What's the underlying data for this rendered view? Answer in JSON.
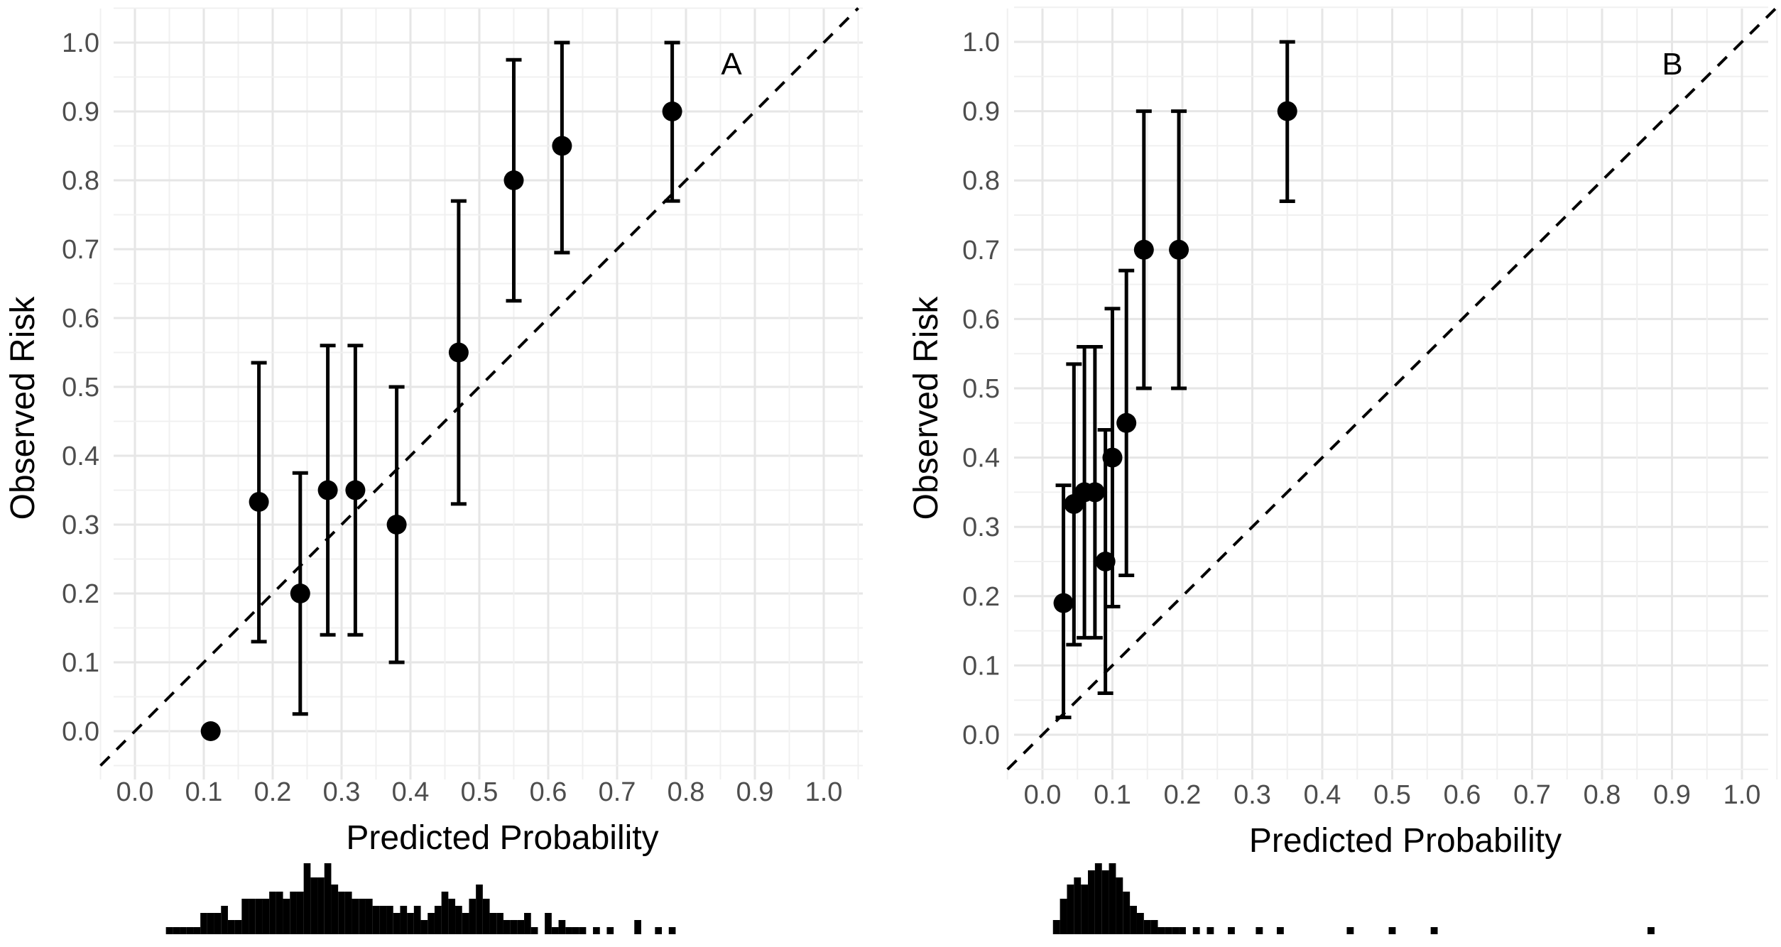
{
  "chart_data": [
    {
      "type": "scatter",
      "panel_label": "A",
      "xlabel": "Predicted Probability",
      "ylabel": "Observed Risk",
      "xlim": [
        0,
        1.0
      ],
      "ylim": [
        0,
        1.0
      ],
      "x_ticks": [
        "0.0",
        "0.1",
        "0.2",
        "0.3",
        "0.4",
        "0.5",
        "0.6",
        "0.7",
        "0.8",
        "0.9",
        "1.0"
      ],
      "y_ticks": [
        "0.0",
        "0.1",
        "0.2",
        "0.3",
        "0.4",
        "0.5",
        "0.6",
        "0.7",
        "0.8",
        "0.9",
        "1.0"
      ],
      "grid": true,
      "reference_line": "y = x (dashed)",
      "points": [
        {
          "x": 0.11,
          "y": 0.0,
          "lo": null,
          "hi": null
        },
        {
          "x": 0.18,
          "y": 0.333,
          "lo": 0.13,
          "hi": 0.535
        },
        {
          "x": 0.24,
          "y": 0.2,
          "lo": 0.025,
          "hi": 0.375
        },
        {
          "x": 0.28,
          "y": 0.35,
          "lo": 0.14,
          "hi": 0.56
        },
        {
          "x": 0.32,
          "y": 0.35,
          "lo": 0.14,
          "hi": 0.56
        },
        {
          "x": 0.38,
          "y": 0.3,
          "lo": 0.1,
          "hi": 0.5
        },
        {
          "x": 0.47,
          "y": 0.55,
          "lo": 0.33,
          "hi": 0.77
        },
        {
          "x": 0.55,
          "y": 0.8,
          "lo": 0.625,
          "hi": 0.975
        },
        {
          "x": 0.62,
          "y": 0.85,
          "lo": 0.695,
          "hi": 1.0
        },
        {
          "x": 0.78,
          "y": 0.9,
          "lo": 0.77,
          "hi": 1.0
        }
      ],
      "histogram": {
        "bins": [
          {
            "x": 0.05,
            "count": 1
          },
          {
            "x": 0.06,
            "count": 1
          },
          {
            "x": 0.07,
            "count": 1
          },
          {
            "x": 0.08,
            "count": 1
          },
          {
            "x": 0.09,
            "count": 1
          },
          {
            "x": 0.1,
            "count": 3
          },
          {
            "x": 0.11,
            "count": 3
          },
          {
            "x": 0.12,
            "count": 3
          },
          {
            "x": 0.13,
            "count": 4
          },
          {
            "x": 0.14,
            "count": 2
          },
          {
            "x": 0.15,
            "count": 2
          },
          {
            "x": 0.16,
            "count": 5
          },
          {
            "x": 0.17,
            "count": 5
          },
          {
            "x": 0.18,
            "count": 5
          },
          {
            "x": 0.19,
            "count": 5
          },
          {
            "x": 0.2,
            "count": 6
          },
          {
            "x": 0.21,
            "count": 6
          },
          {
            "x": 0.22,
            "count": 5
          },
          {
            "x": 0.23,
            "count": 6
          },
          {
            "x": 0.24,
            "count": 6
          },
          {
            "x": 0.25,
            "count": 10
          },
          {
            "x": 0.26,
            "count": 8
          },
          {
            "x": 0.27,
            "count": 8
          },
          {
            "x": 0.28,
            "count": 10
          },
          {
            "x": 0.29,
            "count": 7
          },
          {
            "x": 0.3,
            "count": 6
          },
          {
            "x": 0.31,
            "count": 6
          },
          {
            "x": 0.32,
            "count": 5
          },
          {
            "x": 0.33,
            "count": 5
          },
          {
            "x": 0.34,
            "count": 5
          },
          {
            "x": 0.35,
            "count": 4
          },
          {
            "x": 0.36,
            "count": 4
          },
          {
            "x": 0.37,
            "count": 4
          },
          {
            "x": 0.38,
            "count": 3
          },
          {
            "x": 0.39,
            "count": 4
          },
          {
            "x": 0.4,
            "count": 3
          },
          {
            "x": 0.41,
            "count": 4
          },
          {
            "x": 0.42,
            "count": 2
          },
          {
            "x": 0.43,
            "count": 3
          },
          {
            "x": 0.44,
            "count": 4
          },
          {
            "x": 0.45,
            "count": 6
          },
          {
            "x": 0.46,
            "count": 5
          },
          {
            "x": 0.47,
            "count": 4
          },
          {
            "x": 0.48,
            "count": 3
          },
          {
            "x": 0.49,
            "count": 5
          },
          {
            "x": 0.5,
            "count": 7
          },
          {
            "x": 0.51,
            "count": 5
          },
          {
            "x": 0.52,
            "count": 3
          },
          {
            "x": 0.53,
            "count": 3
          },
          {
            "x": 0.54,
            "count": 2
          },
          {
            "x": 0.55,
            "count": 2
          },
          {
            "x": 0.56,
            "count": 2
          },
          {
            "x": 0.57,
            "count": 3
          },
          {
            "x": 0.58,
            "count": 1
          },
          {
            "x": 0.6,
            "count": 3
          },
          {
            "x": 0.61,
            "count": 1
          },
          {
            "x": 0.62,
            "count": 2
          },
          {
            "x": 0.63,
            "count": 1
          },
          {
            "x": 0.64,
            "count": 1
          },
          {
            "x": 0.65,
            "count": 1
          },
          {
            "x": 0.67,
            "count": 1
          },
          {
            "x": 0.69,
            "count": 1
          },
          {
            "x": 0.73,
            "count": 2
          },
          {
            "x": 0.76,
            "count": 1
          },
          {
            "x": 0.78,
            "count": 1
          }
        ]
      }
    },
    {
      "type": "scatter",
      "panel_label": "B",
      "xlabel": "Predicted Probability",
      "ylabel": "Observed Risk",
      "xlim": [
        0,
        1.0
      ],
      "ylim": [
        0,
        1.0
      ],
      "x_ticks": [
        "0.0",
        "0.1",
        "0.2",
        "0.3",
        "0.4",
        "0.5",
        "0.6",
        "0.7",
        "0.8",
        "0.9",
        "1.0"
      ],
      "y_ticks": [
        "0.0",
        "0.1",
        "0.2",
        "0.3",
        "0.4",
        "0.5",
        "0.6",
        "0.7",
        "0.8",
        "0.9",
        "1.0"
      ],
      "grid": true,
      "reference_line": "y = x (dashed)",
      "points": [
        {
          "x": 0.03,
          "y": 0.19,
          "lo": 0.025,
          "hi": 0.36
        },
        {
          "x": 0.045,
          "y": 0.333,
          "lo": 0.13,
          "hi": 0.535
        },
        {
          "x": 0.06,
          "y": 0.35,
          "lo": 0.14,
          "hi": 0.56
        },
        {
          "x": 0.075,
          "y": 0.35,
          "lo": 0.14,
          "hi": 0.56
        },
        {
          "x": 0.09,
          "y": 0.25,
          "lo": 0.06,
          "hi": 0.44
        },
        {
          "x": 0.1,
          "y": 0.4,
          "lo": 0.185,
          "hi": 0.615
        },
        {
          "x": 0.12,
          "y": 0.45,
          "lo": 0.23,
          "hi": 0.67
        },
        {
          "x": 0.145,
          "y": 0.7,
          "lo": 0.5,
          "hi": 0.9
        },
        {
          "x": 0.195,
          "y": 0.7,
          "lo": 0.5,
          "hi": 0.9
        },
        {
          "x": 0.35,
          "y": 0.9,
          "lo": 0.77,
          "hi": 1.0
        }
      ],
      "histogram": {
        "bins": [
          {
            "x": 0.02,
            "count": 2
          },
          {
            "x": 0.03,
            "count": 5
          },
          {
            "x": 0.04,
            "count": 7
          },
          {
            "x": 0.05,
            "count": 8
          },
          {
            "x": 0.06,
            "count": 7
          },
          {
            "x": 0.07,
            "count": 9
          },
          {
            "x": 0.08,
            "count": 10
          },
          {
            "x": 0.09,
            "count": 9
          },
          {
            "x": 0.1,
            "count": 10
          },
          {
            "x": 0.11,
            "count": 8
          },
          {
            "x": 0.12,
            "count": 6
          },
          {
            "x": 0.13,
            "count": 4
          },
          {
            "x": 0.14,
            "count": 3
          },
          {
            "x": 0.15,
            "count": 2
          },
          {
            "x": 0.16,
            "count": 2
          },
          {
            "x": 0.17,
            "count": 1
          },
          {
            "x": 0.18,
            "count": 1
          },
          {
            "x": 0.19,
            "count": 1
          },
          {
            "x": 0.2,
            "count": 1
          },
          {
            "x": 0.22,
            "count": 1
          },
          {
            "x": 0.24,
            "count": 1
          },
          {
            "x": 0.27,
            "count": 1
          },
          {
            "x": 0.31,
            "count": 1
          },
          {
            "x": 0.34,
            "count": 1
          },
          {
            "x": 0.44,
            "count": 1
          },
          {
            "x": 0.5,
            "count": 1
          },
          {
            "x": 0.56,
            "count": 1
          },
          {
            "x": 0.87,
            "count": 1
          }
        ]
      }
    }
  ]
}
